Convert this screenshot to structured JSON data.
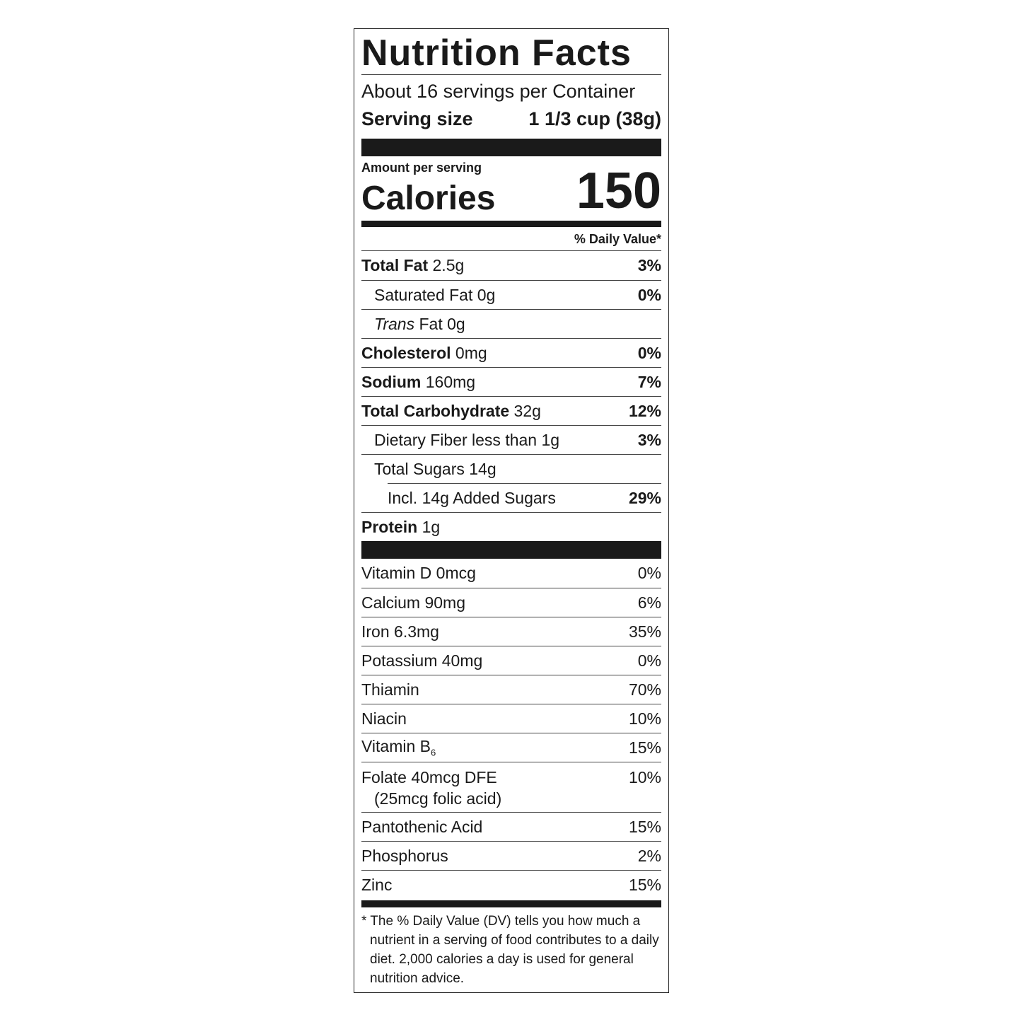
{
  "label": {
    "title": "Nutrition Facts",
    "servings": "About 16 servings per Container",
    "serving_size": {
      "label": "Serving size",
      "value": "1 1/3 cup (38g)"
    },
    "amount_per_serving": "Amount per serving",
    "calories": {
      "label": "Calories",
      "value": 150
    },
    "dv_header": "% Daily Value*",
    "nutrients": [
      {
        "name": "Total Fat",
        "amount": "2.5g",
        "dv": "3%",
        "bold": true,
        "indent": 0
      },
      {
        "name": "Saturated Fat",
        "amount": "0g",
        "dv": "0%",
        "bold": false,
        "indent": 1
      },
      {
        "name_italic": "Trans",
        "name": "Fat",
        "amount": "0g",
        "bold": false,
        "indent": 1
      },
      {
        "name": "Cholesterol",
        "amount": "0mg",
        "dv": "0%",
        "bold": true,
        "indent": 0
      },
      {
        "name": "Sodium",
        "amount": "160mg",
        "dv": "7%",
        "bold": true,
        "indent": 0
      },
      {
        "name": "Total Carbohydrate",
        "amount": "32g",
        "dv": "12%",
        "bold": true,
        "indent": 0
      },
      {
        "name": "Dietary Fiber less than",
        "amount": "1g",
        "dv": "3%",
        "bold": false,
        "indent": 1
      },
      {
        "name": "Total Sugars",
        "amount": "14g",
        "bold": false,
        "indent": 1
      },
      {
        "name": "Incl. 14g Added Sugars",
        "dv": "29%",
        "bold": false,
        "indent": 2
      },
      {
        "name": "Protein",
        "amount": "1g",
        "bold": true,
        "indent": 0
      }
    ],
    "vitamins": [
      {
        "name": "Vitamin D",
        "amount": "0mcg",
        "dv": "0%"
      },
      {
        "name": "Calcium",
        "amount": "90mg",
        "dv": "6%"
      },
      {
        "name": "Iron",
        "amount": "6.3mg",
        "dv": "35%"
      },
      {
        "name": "Potassium",
        "amount": "40mg",
        "dv": "0%"
      },
      {
        "name": "Thiamin",
        "dv": "70%"
      },
      {
        "name": "Niacin",
        "dv": "10%"
      },
      {
        "name": "Vitamin B",
        "subscript": "6",
        "dv": "15%"
      },
      {
        "name": "Folate",
        "amount": "40mcg DFE",
        "note": "(25mcg folic acid)",
        "dv": "10%"
      },
      {
        "name": "Pantothenic Acid",
        "dv": "15%"
      },
      {
        "name": "Phosphorus",
        "dv": "2%"
      },
      {
        "name": "Zinc",
        "dv": "15%"
      }
    ],
    "footnote": [
      "* The % Daily Value (DV) tells you how much a",
      "nutrient in a serving of food contributes to a daily",
      "diet. 2,000 calories a day is used for general",
      "nutrition advice."
    ]
  }
}
